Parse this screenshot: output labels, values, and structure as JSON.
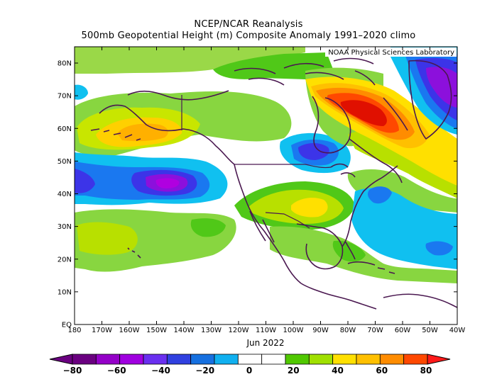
{
  "title": "NCEP/NCAR Reanalysis",
  "subtitle": "500mb Geopotential Height (m) Composite Anomaly 1991–2020 climo",
  "credit": "NOAA Physical Sciences Laboratory",
  "period_label": "Jun 2022",
  "lat_labels": [
    "80N",
    "70N",
    "60N",
    "50N",
    "40N",
    "30N",
    "20N",
    "10N",
    "EQ"
  ],
  "lon_labels": [
    "180",
    "170W",
    "160W",
    "150W",
    "140W",
    "130W",
    "120W",
    "110W",
    "100W",
    "90W",
    "80W",
    "70W",
    "60W",
    "50W",
    "40W"
  ],
  "colorbar": {
    "labels": [
      "−80",
      "−60",
      "−40",
      "−20",
      "0",
      "20",
      "40",
      "60",
      "80"
    ],
    "colors": [
      "#6a0080",
      "#9400c8",
      "#a000e0",
      "#6a2ff0",
      "#3040e0",
      "#1670e0",
      "#10b0f0",
      "#ffffff",
      "#ffffff",
      "#50c800",
      "#a0e000",
      "#ffe000",
      "#ffc000",
      "#ff8c00",
      "#ff4800"
    ],
    "min_color": "#6a0080",
    "max_color": "#ff1a1a"
  },
  "colors": {
    "coast": "#4a1850",
    "light_green": "#88d640",
    "green": "#4cc814",
    "yellow_green": "#b8e000",
    "yellow": "#ffe000",
    "orange": "#ffa000",
    "red": "#ff4800",
    "deep_red": "#e01000",
    "cyan": "#10c0f0",
    "blue": "#1a78f0",
    "indigo": "#3c34e8",
    "violet": "#8c10dc",
    "purple": "#b000e0"
  }
}
